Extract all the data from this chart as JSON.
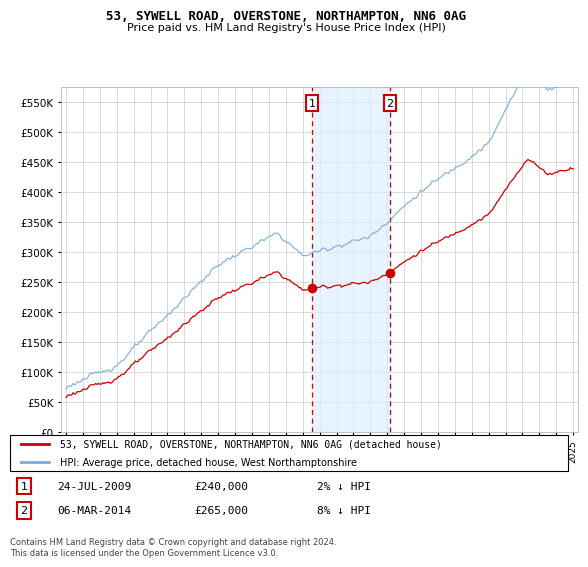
{
  "title": "53, SYWELL ROAD, OVERSTONE, NORTHAMPTON, NN6 0AG",
  "subtitle": "Price paid vs. HM Land Registry's House Price Index (HPI)",
  "legend_line1": "53, SYWELL ROAD, OVERSTONE, NORTHAMPTON, NN6 0AG (detached house)",
  "legend_line2": "HPI: Average price, detached house, West Northamptonshire",
  "transaction1_date": "24-JUL-2009",
  "transaction1_price": 240000,
  "transaction1_hpi": "2% ↓ HPI",
  "transaction1_label": "1",
  "transaction2_date": "06-MAR-2014",
  "transaction2_price": 265000,
  "transaction2_hpi": "8% ↓ HPI",
  "transaction2_label": "2",
  "footer": "Contains HM Land Registry data © Crown copyright and database right 2024.\nThis data is licensed under the Open Government Licence v3.0.",
  "ylim": [
    0,
    575000
  ],
  "yticks": [
    0,
    50000,
    100000,
    150000,
    200000,
    250000,
    300000,
    350000,
    400000,
    450000,
    500000,
    550000
  ],
  "background_color": "#ffffff",
  "grid_color": "#cccccc",
  "sale_color": "#cc0000",
  "hpi_color": "#7aadda",
  "shade_color": "#ddeeff",
  "vline_color": "#cc0000",
  "transaction1_x": 2009.56,
  "transaction2_x": 2014.17,
  "xlim_left": 1995.0,
  "xlim_right": 2025.3
}
